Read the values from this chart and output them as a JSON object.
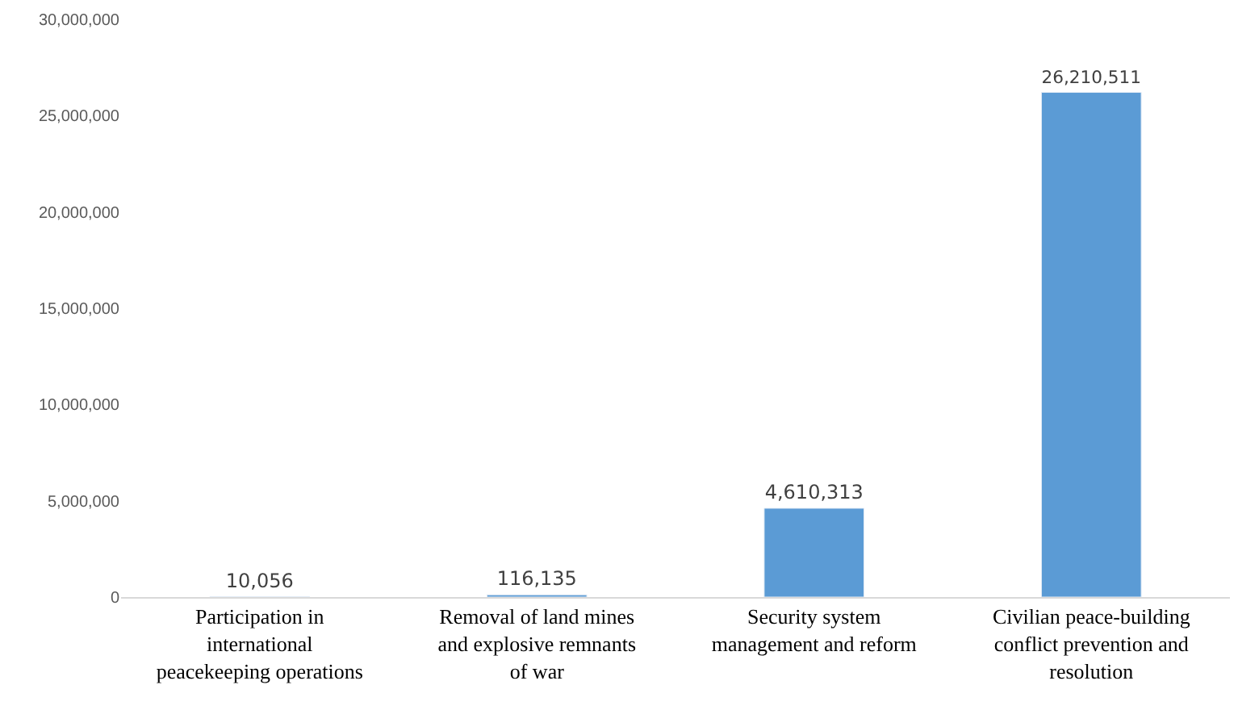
{
  "chart_data": {
    "type": "bar",
    "categories": [
      "Participation in international peacekeeping operations",
      "Removal of land mines and explosive remnants of war",
      "Security system management and reform",
      "Civilian peace-building conflict prevention and resolution"
    ],
    "values": [
      10056,
      116135,
      4610313,
      26210511
    ],
    "value_labels": [
      "10,056",
      "116,135",
      "4,610,313",
      "26,210,511"
    ],
    "color": "#5b9bd5",
    "ylim": [
      0,
      30000000
    ],
    "yticks": [
      {
        "value": 0,
        "label": "0"
      },
      {
        "value": 5000000,
        "label": "5,000,000"
      },
      {
        "value": 10000000,
        "label": "10,000,000"
      },
      {
        "value": 15000000,
        "label": "15,000,000"
      },
      {
        "value": 20000000,
        "label": "20,000,000"
      },
      {
        "value": 25000000,
        "label": "25,000,000"
      },
      {
        "value": 30000000,
        "label": "30,000,000"
      }
    ],
    "grid": false,
    "legend": false
  }
}
